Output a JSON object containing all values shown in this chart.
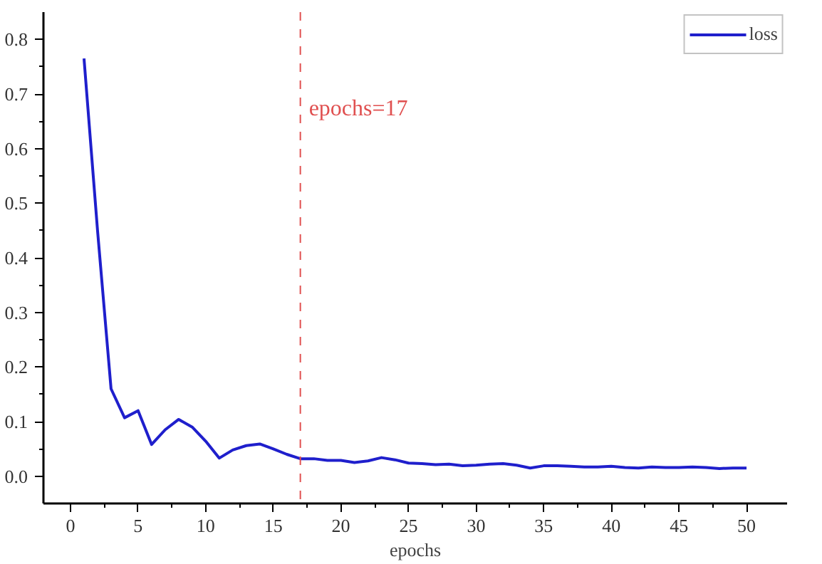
{
  "chart_data": {
    "type": "line",
    "xlabel": "epochs",
    "x": [
      1,
      2,
      3,
      4,
      5,
      6,
      7,
      8,
      9,
      10,
      11,
      12,
      13,
      14,
      15,
      16,
      17,
      18,
      19,
      20,
      21,
      22,
      23,
      24,
      25,
      26,
      27,
      28,
      29,
      30,
      31,
      32,
      33,
      34,
      35,
      36,
      37,
      38,
      39,
      40,
      41,
      42,
      43,
      44,
      45,
      46,
      47,
      48,
      49,
      50
    ],
    "series": [
      {
        "name": "loss",
        "color": "#1f1fcc",
        "values": [
          0.765,
          0.45,
          0.16,
          0.107,
          0.12,
          0.058,
          0.085,
          0.104,
          0.09,
          0.064,
          0.033,
          0.048,
          0.056,
          0.059,
          0.05,
          0.04,
          0.032,
          0.032,
          0.029,
          0.029,
          0.025,
          0.028,
          0.034,
          0.03,
          0.024,
          0.023,
          0.021,
          0.022,
          0.019,
          0.02,
          0.022,
          0.023,
          0.02,
          0.015,
          0.019,
          0.019,
          0.018,
          0.017,
          0.017,
          0.018,
          0.016,
          0.015,
          0.017,
          0.016,
          0.016,
          0.017,
          0.016,
          0.014,
          0.015,
          0.015
        ]
      }
    ],
    "xlim": [
      -2,
      53
    ],
    "ylim": [
      -0.05,
      0.85
    ],
    "xticks": [
      0,
      5,
      10,
      15,
      20,
      25,
      30,
      35,
      40,
      45,
      50
    ],
    "yticks": [
      {
        "value": 0,
        "label": "0.0"
      },
      {
        "value": 0.1,
        "label": "0.1"
      },
      {
        "value": 0.2,
        "label": "0.2"
      },
      {
        "value": 0.3,
        "label": "0.3"
      },
      {
        "value": 0.4,
        "label": "0.4"
      },
      {
        "value": 0.5,
        "label": "0.5"
      },
      {
        "value": 0.6,
        "label": "0.6"
      },
      {
        "value": 0.7,
        "label": "0.7"
      },
      {
        "value": 0.8,
        "label": "0.8"
      }
    ],
    "ref_lines": [
      {
        "axis": "x",
        "value": 17,
        "color": "#e05050",
        "line_style": "dashed"
      }
    ],
    "annotations": [
      {
        "text": "epochs=17",
        "x": 17,
        "y": 0.65
      }
    ],
    "legend": "top right",
    "grid": false,
    "line_style": "solid",
    "marker": "none"
  }
}
